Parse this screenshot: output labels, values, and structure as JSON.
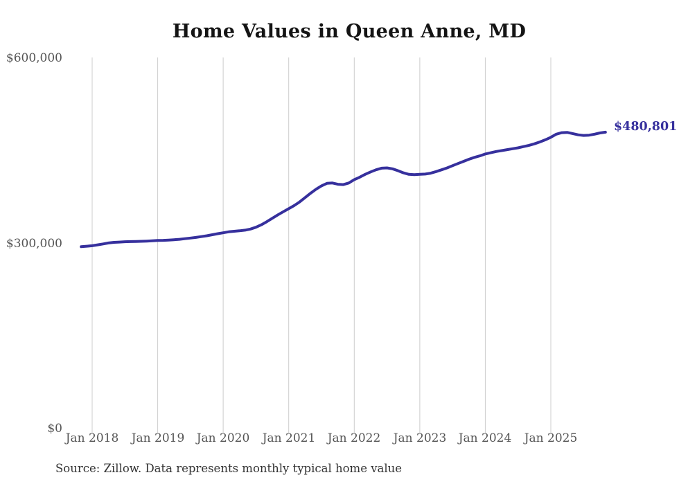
{
  "page": {
    "background": "#ffffff"
  },
  "chart_data": {
    "type": "line",
    "title": "Home Values in Queen Anne, MD",
    "source_note": "Source: Zillow. Data represents monthly typical home value",
    "end_label": "$480,801",
    "end_value": 480801,
    "line_color": "#36309d",
    "gridline_color": "#cccccc",
    "axis_label_color": "#545454",
    "grid": "vertical-only",
    "legend": "none",
    "ylim": [
      0,
      600000
    ],
    "y_tick_labels": [
      "$600,000",
      "$300,000",
      "$0"
    ],
    "y_tick_values": [
      600000,
      300000,
      0
    ],
    "x_tick_labels": [
      "Jan 2018",
      "Jan 2019",
      "Jan 2020",
      "Jan 2021",
      "Jan 2022",
      "Jan 2023",
      "Jan 2024",
      "Jan 2025"
    ],
    "x_tick_months": [
      0,
      12,
      24,
      36,
      48,
      60,
      72,
      84
    ],
    "start_month_offset": -2,
    "series": [
      {
        "name": "Monthly typical home value",
        "values": [
          295500,
          296300,
          297000,
          298500,
          300000,
          301500,
          302500,
          303000,
          303500,
          303800,
          304000,
          304200,
          304500,
          305000,
          305500,
          305800,
          306200,
          306800,
          307500,
          308500,
          309500,
          310500,
          311800,
          313200,
          314800,
          316500,
          318000,
          319500,
          320500,
          321200,
          322200,
          324000,
          327000,
          331000,
          336000,
          341500,
          347000,
          352000,
          357000,
          362000,
          368000,
          375000,
          382000,
          388500,
          394000,
          398000,
          398500,
          396500,
          396000,
          398500,
          404000,
          408000,
          412500,
          416500,
          420000,
          422500,
          423000,
          421500,
          418500,
          415000,
          412500,
          412000,
          412500,
          413000,
          414500,
          417000,
          420000,
          423000,
          426500,
          430000,
          433500,
          437000,
          440000,
          442500,
          445500,
          447500,
          449500,
          451000,
          452500,
          454000,
          455500,
          457500,
          459500,
          462000,
          465000,
          468500,
          472500,
          477500,
          480000,
          480500,
          478500,
          476500,
          475500,
          476000,
          477500,
          479500,
          480801
        ]
      }
    ]
  }
}
